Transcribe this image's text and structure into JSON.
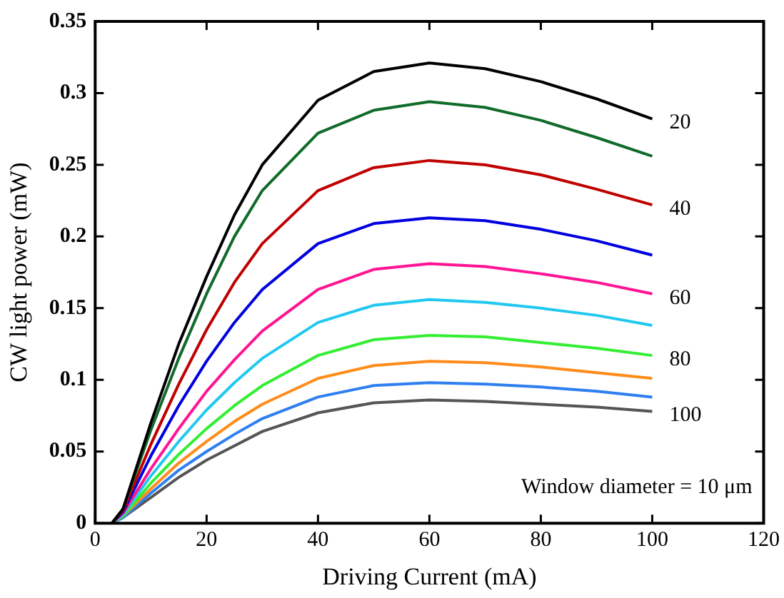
{
  "chart_data": {
    "type": "line",
    "xlabel": "Driving Current (mA)",
    "ylabel": "CW light power (mW)",
    "x": [
      3,
      5,
      10,
      15,
      20,
      25,
      30,
      40,
      50,
      60,
      70,
      80,
      90,
      100
    ],
    "series": [
      {
        "color": "#000000",
        "values": [
          0,
          0.01,
          0.07,
          0.125,
          0.172,
          0.215,
          0.25,
          0.295,
          0.315,
          0.321,
          0.317,
          0.308,
          0.296,
          0.282
        ]
      },
      {
        "color": "#116b2a",
        "values": [
          0,
          0.01,
          0.065,
          0.115,
          0.16,
          0.2,
          0.232,
          0.272,
          0.288,
          0.294,
          0.29,
          0.281,
          0.269,
          0.256
        ]
      },
      {
        "color": "#c00000",
        "values": [
          0,
          0.009,
          0.055,
          0.097,
          0.135,
          0.168,
          0.195,
          0.232,
          0.248,
          0.253,
          0.25,
          0.243,
          0.233,
          0.222
        ]
      },
      {
        "color": "#0000e0",
        "values": [
          0,
          0.008,
          0.047,
          0.082,
          0.113,
          0.14,
          0.163,
          0.195,
          0.209,
          0.213,
          0.211,
          0.205,
          0.197,
          0.187
        ]
      },
      {
        "color": "#ff1493",
        "values": [
          0,
          0.007,
          0.038,
          0.066,
          0.092,
          0.114,
          0.134,
          0.163,
          0.177,
          0.181,
          0.179,
          0.174,
          0.168,
          0.16
        ]
      },
      {
        "color": "#22c8f0",
        "values": [
          0,
          0.006,
          0.033,
          0.057,
          0.079,
          0.098,
          0.115,
          0.14,
          0.152,
          0.156,
          0.154,
          0.15,
          0.145,
          0.138
        ]
      },
      {
        "color": "#33ee33",
        "values": [
          0,
          0.005,
          0.028,
          0.048,
          0.066,
          0.082,
          0.096,
          0.117,
          0.128,
          0.131,
          0.13,
          0.126,
          0.122,
          0.117
        ]
      },
      {
        "color": "#ff8c1a",
        "values": [
          0,
          0.005,
          0.024,
          0.042,
          0.057,
          0.071,
          0.083,
          0.101,
          0.11,
          0.113,
          0.112,
          0.109,
          0.105,
          0.101
        ]
      },
      {
        "color": "#2f7ff0",
        "values": [
          0,
          0.004,
          0.021,
          0.037,
          0.05,
          0.062,
          0.073,
          0.088,
          0.096,
          0.098,
          0.097,
          0.095,
          0.092,
          0.088
        ]
      },
      {
        "color": "#555555",
        "values": [
          0,
          0.004,
          0.018,
          0.032,
          0.044,
          0.054,
          0.064,
          0.077,
          0.084,
          0.086,
          0.085,
          0.083,
          0.081,
          0.078
        ]
      }
    ],
    "annotations": [
      "20",
      "40",
      "60",
      "80",
      "100",
      "Window diameter = 10 μm"
    ],
    "xlim": [
      0,
      120
    ],
    "xticks": [
      0,
      20,
      40,
      60,
      80,
      100,
      120
    ],
    "ylim": [
      0,
      0.35
    ],
    "yticks": [
      0,
      0.05,
      0.1,
      0.15,
      0.2,
      0.25,
      0.3,
      0.35
    ],
    "grid": false,
    "legend": false,
    "marker": "none",
    "line_style": "solid"
  }
}
